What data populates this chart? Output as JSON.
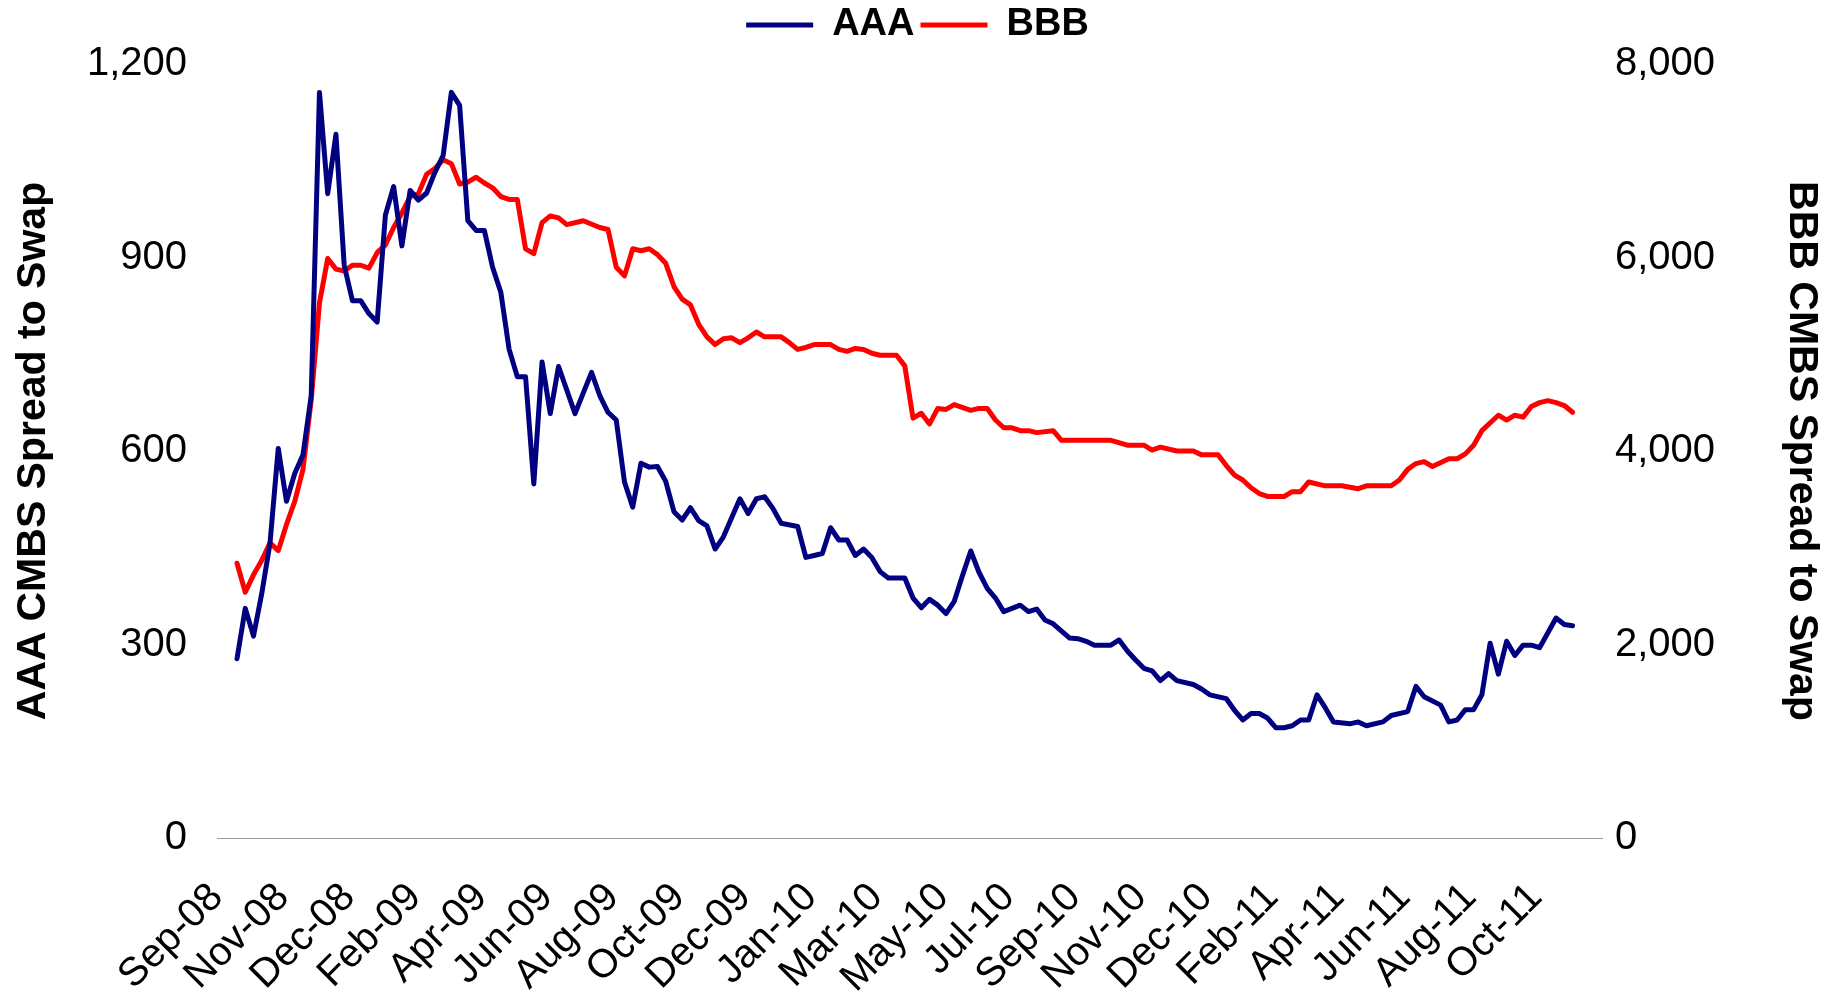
{
  "chart_data": {
    "type": "line",
    "ylabel": "AAA CMBS Spread to Swap",
    "y2label": "BBB CMBS Spread to Swap",
    "legend": "top",
    "marker": "none",
    "line_style": "solid",
    "xlim": [
      "2008-09-09",
      "2011-11-29"
    ],
    "xticks": [
      {
        "value": "2008-09-09",
        "label": "Sep-08"
      },
      {
        "value": "2008-11-04",
        "label": "Nov-08"
      },
      {
        "value": "2008-12-30",
        "label": "Dec-08"
      },
      {
        "value": "2009-02-24",
        "label": "Feb-09"
      },
      {
        "value": "2009-04-21",
        "label": "Apr-09"
      },
      {
        "value": "2009-06-16",
        "label": "Jun-09"
      },
      {
        "value": "2009-08-11",
        "label": "Aug-09"
      },
      {
        "value": "2009-10-06",
        "label": "Oct-09"
      },
      {
        "value": "2009-12-01",
        "label": "Dec-09"
      },
      {
        "value": "2010-01-26",
        "label": "Jan-10"
      },
      {
        "value": "2010-03-23",
        "label": "Mar-10"
      },
      {
        "value": "2010-05-18",
        "label": "May-10"
      },
      {
        "value": "2010-07-13",
        "label": "Jul-10"
      },
      {
        "value": "2010-09-07",
        "label": "Sep-10"
      },
      {
        "value": "2010-11-02",
        "label": "Nov-10"
      },
      {
        "value": "2010-12-28",
        "label": "Dec-10"
      },
      {
        "value": "2011-02-22",
        "label": "Feb-11"
      },
      {
        "value": "2011-04-19",
        "label": "Apr-11"
      },
      {
        "value": "2011-06-14",
        "label": "Jun-11"
      },
      {
        "value": "2011-08-09",
        "label": "Aug-11"
      },
      {
        "value": "2011-10-04",
        "label": "Oct-11"
      }
    ],
    "ylim": [
      0,
      1200
    ],
    "yticks": [
      0,
      300,
      600,
      900,
      {
        "value": 1200,
        "label": "1,200"
      }
    ],
    "y2lim": [
      0,
      8000
    ],
    "y2ticks": [
      0,
      {
        "value": 2000,
        "label": "2,000"
      },
      {
        "value": 4000,
        "label": "4,000"
      },
      {
        "value": 6000,
        "label": "6,000"
      },
      {
        "value": 8000,
        "label": "8,000"
      }
    ],
    "series": [
      {
        "name": "AAA",
        "color": "#000080",
        "x": [
          "2008-09-26",
          "2008-10-03",
          "2008-10-10",
          "2008-10-17",
          "2008-10-24",
          "2008-10-31",
          "2008-11-07",
          "2008-11-14",
          "2008-11-21",
          "2008-11-28",
          "2008-12-05",
          "2008-12-12",
          "2008-12-19",
          "2008-12-26",
          "2009-01-02",
          "2009-01-09",
          "2009-01-16",
          "2009-01-23",
          "2009-01-30",
          "2009-02-06",
          "2009-02-13",
          "2009-02-20",
          "2009-02-27",
          "2009-03-06",
          "2009-03-13",
          "2009-03-20",
          "2009-03-27",
          "2009-04-03",
          "2009-04-10",
          "2009-04-17",
          "2009-04-24",
          "2009-05-01",
          "2009-05-08",
          "2009-05-15",
          "2009-05-22",
          "2009-05-29",
          "2009-06-05",
          "2009-06-12",
          "2009-06-19",
          "2009-06-26",
          "2009-07-10",
          "2009-07-24",
          "2009-07-31",
          "2009-08-07",
          "2009-08-14",
          "2009-08-21",
          "2009-08-28",
          "2009-09-04",
          "2009-09-11",
          "2009-09-18",
          "2009-09-25",
          "2009-10-02",
          "2009-10-09",
          "2009-10-16",
          "2009-10-23",
          "2009-10-30",
          "2009-11-06",
          "2009-11-13",
          "2009-11-27",
          "2009-12-04",
          "2009-12-11",
          "2009-12-18",
          "2009-12-25",
          "2010-01-01",
          "2010-01-15",
          "2010-01-22",
          "2010-01-29",
          "2010-02-05",
          "2010-02-12",
          "2010-02-19",
          "2010-02-26",
          "2010-03-05",
          "2010-03-12",
          "2010-03-19",
          "2010-03-26",
          "2010-04-02",
          "2010-04-16",
          "2010-04-23",
          "2010-04-30",
          "2010-05-07",
          "2010-05-14",
          "2010-05-21",
          "2010-05-28",
          "2010-06-04",
          "2010-06-11",
          "2010-06-18",
          "2010-06-25",
          "2010-07-02",
          "2010-07-09",
          "2010-07-23",
          "2010-07-30",
          "2010-08-06",
          "2010-08-13",
          "2010-08-20",
          "2010-09-03",
          "2010-09-10",
          "2010-09-17",
          "2010-09-24",
          "2010-10-08",
          "2010-10-15",
          "2010-10-22",
          "2010-10-29",
          "2010-11-05",
          "2010-11-12",
          "2010-11-19",
          "2010-11-26",
          "2010-12-03",
          "2010-12-17",
          "2010-12-24",
          "2010-12-31",
          "2011-01-14",
          "2011-01-21",
          "2011-01-28",
          "2011-02-04",
          "2011-02-11",
          "2011-02-18",
          "2011-02-25",
          "2011-03-04",
          "2011-03-11",
          "2011-03-18",
          "2011-03-25",
          "2011-04-01",
          "2011-04-08",
          "2011-04-15",
          "2011-04-29",
          "2011-05-06",
          "2011-05-13",
          "2011-05-27",
          "2011-06-03",
          "2011-06-17",
          "2011-06-24",
          "2011-07-01",
          "2011-07-15",
          "2011-07-22",
          "2011-07-29",
          "2011-08-05",
          "2011-08-12",
          "2011-08-19",
          "2011-08-26",
          "2011-09-02",
          "2011-09-09",
          "2011-09-16",
          "2011-09-23",
          "2011-09-30",
          "2011-10-07",
          "2011-10-21",
          "2011-10-28",
          "2011-11-04"
        ],
        "values": [
          278,
          356,
          313,
          379,
          457,
          604,
          522,
          565,
          594,
          686,
          1156,
          999,
          1091,
          888,
          833,
          833,
          813,
          800,
          966,
          1010,
          918,
          1004,
          989,
          1000,
          1032,
          1058,
          1156,
          1136,
          957,
          942,
          942,
          885,
          846,
          758,
          715,
          715,
          549,
          738,
          658,
          731,
          658,
          722,
          686,
          660,
          648,
          552,
          513,
          581,
          575,
          576,
          553,
          506,
          493,
          512,
          492,
          484,
          448,
          467,
          526,
          503,
          526,
          529,
          511,
          488,
          483,
          435,
          438,
          441,
          481,
          462,
          462,
          438,
          448,
          435,
          413,
          403,
          403,
          372,
          357,
          370,
          361,
          348,
          367,
          407,
          445,
          412,
          387,
          372,
          351,
          361,
          351,
          355,
          338,
          332,
          310,
          309,
          305,
          299,
          299,
          307,
          290,
          276,
          263,
          259,
          244,
          255,
          244,
          238,
          231,
          222,
          216,
          198,
          183,
          193,
          193,
          186,
          171,
          171,
          174,
          183,
          183,
          222,
          202,
          180,
          177,
          180,
          174,
          180,
          190,
          196,
          235,
          219,
          206,
          180,
          183,
          199,
          199,
          222,
          302,
          254,
          305,
          283,
          299,
          299,
          295,
          341,
          331,
          329
        ]
      },
      {
        "name": "BBB",
        "color": "#ff0000",
        "axis": "y2",
        "x": [
          "2008-09-26",
          "2008-10-03",
          "2008-10-10",
          "2008-10-17",
          "2008-10-24",
          "2008-10-31",
          "2008-11-07",
          "2008-11-14",
          "2008-11-21",
          "2008-11-28",
          "2008-12-05",
          "2008-12-12",
          "2008-12-19",
          "2008-12-26",
          "2009-01-02",
          "2009-01-09",
          "2009-01-16",
          "2009-01-23",
          "2009-01-30",
          "2009-02-06",
          "2009-02-13",
          "2009-02-20",
          "2009-02-27",
          "2009-03-06",
          "2009-03-13",
          "2009-03-20",
          "2009-03-27",
          "2009-04-03",
          "2009-04-10",
          "2009-04-17",
          "2009-04-24",
          "2009-05-01",
          "2009-05-08",
          "2009-05-15",
          "2009-05-22",
          "2009-05-29",
          "2009-06-05",
          "2009-06-12",
          "2009-06-19",
          "2009-06-26",
          "2009-07-03",
          "2009-07-17",
          "2009-07-31",
          "2009-08-07",
          "2009-08-14",
          "2009-08-21",
          "2009-08-28",
          "2009-09-04",
          "2009-09-11",
          "2009-09-18",
          "2009-09-25",
          "2009-10-02",
          "2009-10-09",
          "2009-10-16",
          "2009-10-23",
          "2009-10-30",
          "2009-11-06",
          "2009-11-13",
          "2009-11-20",
          "2009-11-27",
          "2009-12-04",
          "2009-12-11",
          "2009-12-18",
          "2010-01-01",
          "2010-01-08",
          "2010-01-15",
          "2010-01-22",
          "2010-01-29",
          "2010-02-12",
          "2010-02-19",
          "2010-02-26",
          "2010-03-05",
          "2010-03-12",
          "2010-03-19",
          "2010-03-26",
          "2010-04-09",
          "2010-04-16",
          "2010-04-23",
          "2010-04-30",
          "2010-05-07",
          "2010-05-14",
          "2010-05-21",
          "2010-05-28",
          "2010-06-11",
          "2010-06-18",
          "2010-06-25",
          "2010-07-02",
          "2010-07-09",
          "2010-07-16",
          "2010-07-23",
          "2010-07-30",
          "2010-08-06",
          "2010-08-20",
          "2010-08-27",
          "2010-10-08",
          "2010-10-22",
          "2010-11-05",
          "2010-11-12",
          "2010-11-19",
          "2010-12-03",
          "2010-12-17",
          "2010-12-24",
          "2011-01-07",
          "2011-01-14",
          "2011-01-21",
          "2011-01-28",
          "2011-02-04",
          "2011-02-11",
          "2011-02-18",
          "2011-03-04",
          "2011-03-11",
          "2011-03-18",
          "2011-03-25",
          "2011-04-08",
          "2011-04-22",
          "2011-05-06",
          "2011-05-13",
          "2011-06-03",
          "2011-06-10",
          "2011-06-17",
          "2011-06-24",
          "2011-07-01",
          "2011-07-08",
          "2011-07-22",
          "2011-07-29",
          "2011-08-05",
          "2011-08-12",
          "2011-08-19",
          "2011-09-02",
          "2011-09-09",
          "2011-09-16",
          "2011-09-23",
          "2011-09-30",
          "2011-10-07",
          "2011-10-14",
          "2011-10-21",
          "2011-10-28",
          "2011-11-04"
        ],
        "values": [
          2840,
          2540,
          2720,
          2870,
          3050,
          2970,
          3240,
          3480,
          3810,
          4530,
          5530,
          5990,
          5880,
          5860,
          5920,
          5920,
          5890,
          6050,
          6130,
          6310,
          6460,
          6630,
          6660,
          6860,
          6920,
          7010,
          6970,
          6760,
          6780,
          6830,
          6770,
          6720,
          6630,
          6600,
          6600,
          6090,
          6040,
          6360,
          6430,
          6410,
          6340,
          6380,
          6310,
          6290,
          5900,
          5810,
          6090,
          6070,
          6090,
          6030,
          5940,
          5700,
          5570,
          5510,
          5310,
          5180,
          5100,
          5160,
          5170,
          5120,
          5170,
          5230,
          5180,
          5180,
          5120,
          5050,
          5070,
          5100,
          5100,
          5050,
          5030,
          5060,
          5050,
          5010,
          4990,
          4990,
          4880,
          4340,
          4390,
          4280,
          4440,
          4430,
          4480,
          4420,
          4440,
          4440,
          4320,
          4240,
          4240,
          4210,
          4210,
          4190,
          4210,
          4110,
          4110,
          4060,
          4060,
          4010,
          4040,
          4000,
          4000,
          3960,
          3960,
          3850,
          3750,
          3700,
          3620,
          3560,
          3530,
          3530,
          3580,
          3580,
          3680,
          3640,
          3640,
          3610,
          3640,
          3640,
          3700,
          3810,
          3870,
          3890,
          3840,
          3920,
          3920,
          3970,
          4060,
          4210,
          4370,
          4320,
          4370,
          4350,
          4460,
          4500,
          4520,
          4500,
          4470,
          4400
        ]
      }
    ]
  }
}
